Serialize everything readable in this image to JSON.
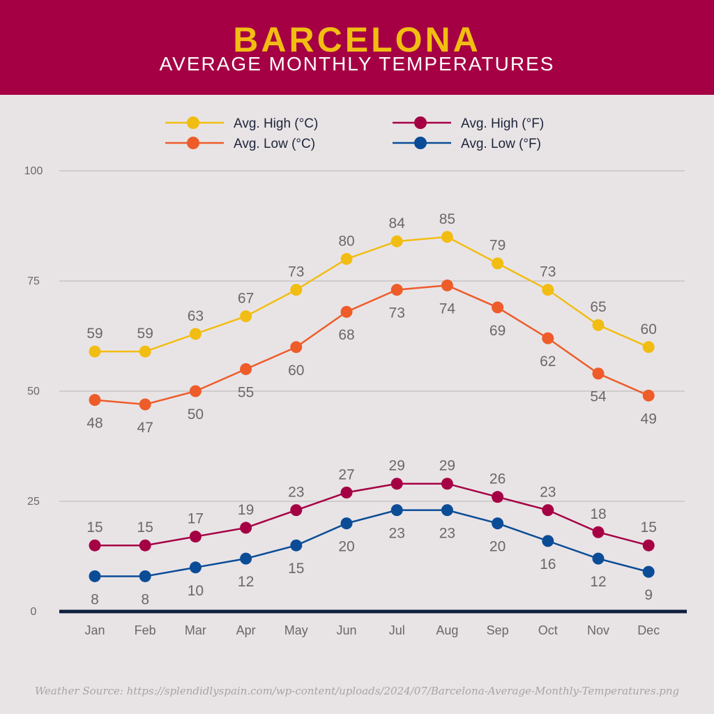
{
  "header": {
    "title": "BARCELONA",
    "subtitle": "AVERAGE MONTHLY TEMPERATURES"
  },
  "source": "Weather Source: https://splendidlyspain.com/wp-content/uploads/2024/07/Barcelona-Average-Monthly-Temperatures.png",
  "colors": {
    "header_bg": "#a50044",
    "title": "#f2bd12",
    "axis": "#0f1f3d",
    "grid": "#b9b5b7",
    "label": "#6b6769"
  },
  "chart_data": {
    "type": "line",
    "title": "AVERAGE MONTHLY TEMPERATURES",
    "xlabel": "",
    "ylabel": "",
    "ylim": [
      0,
      100
    ],
    "yticks": [
      0,
      25,
      50,
      75,
      100
    ],
    "grid": true,
    "legend_position": "top",
    "categories": [
      "Jan",
      "Feb",
      "Mar",
      "Apr",
      "May",
      "Jun",
      "Jul",
      "Aug",
      "Sep",
      "Oct",
      "Nov",
      "Dec"
    ],
    "series": [
      {
        "name": "Avg. High (°C)",
        "color": "#f2bd12",
        "label_side": "above",
        "values": [
          59,
          59,
          63,
          67,
          73,
          80,
          84,
          85,
          79,
          73,
          65,
          60
        ]
      },
      {
        "name": "Avg. Low (°C)",
        "color": "#ee5c2a",
        "label_side": "below",
        "values": [
          48,
          47,
          50,
          55,
          60,
          68,
          73,
          74,
          69,
          62,
          54,
          49
        ]
      },
      {
        "name": "Avg. High (°F)",
        "color": "#a50044",
        "label_side": "above",
        "values": [
          15,
          15,
          17,
          19,
          23,
          27,
          29,
          29,
          26,
          23,
          18,
          15
        ]
      },
      {
        "name": "Avg. Low (°F)",
        "color": "#0b4c97",
        "label_side": "below",
        "values": [
          8,
          8,
          10,
          12,
          15,
          20,
          23,
          23,
          20,
          16,
          12,
          9
        ]
      }
    ]
  }
}
